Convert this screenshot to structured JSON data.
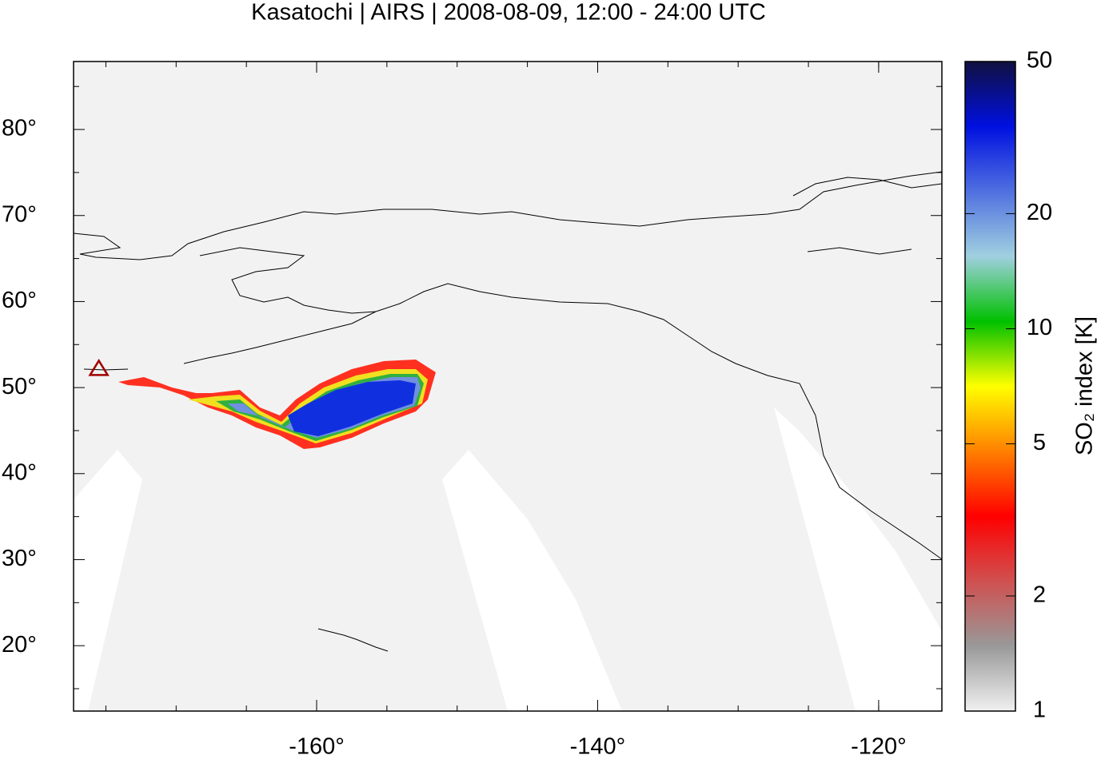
{
  "chart_data": {
    "type": "map",
    "title": "Kasatochi | AIRS | 2008-08-09, 12:00 - 24:00 UTC",
    "xlim": [
      -177.3,
      -115.5
    ],
    "ylim": [
      12.4,
      87.9
    ],
    "xticks": [
      {
        "value": -160,
        "label": "-160°"
      },
      {
        "value": -140,
        "label": "-140°"
      },
      {
        "value": -120,
        "label": "-120°"
      }
    ],
    "yticks": [
      {
        "value": 20,
        "label": "20°"
      },
      {
        "value": 30,
        "label": "30°"
      },
      {
        "value": 40,
        "label": "40°"
      },
      {
        "value": 50,
        "label": "50°"
      },
      {
        "value": 60,
        "label": "60°"
      },
      {
        "value": 70,
        "label": "70°"
      },
      {
        "value": 80,
        "label": "80°"
      }
    ],
    "xminorticks": [
      -175,
      -170,
      -165,
      -155,
      -150,
      -145,
      -135,
      -130,
      -125,
      -120
    ],
    "yminorticks": [
      15,
      25,
      35,
      45,
      55,
      65,
      75,
      85
    ],
    "volcano": {
      "lon": -175.5,
      "lat": 52.2,
      "color": "#a00000"
    },
    "colorbar": {
      "label": "SO₂ index [K]",
      "lim": [
        1,
        50
      ],
      "log": true,
      "ticks": [
        1,
        2,
        5,
        10,
        20,
        50
      ],
      "colors": [
        "#f0f0f0",
        "#999999",
        "#d05050",
        "#ff0000",
        "#ff8000",
        "#ffff00",
        "#00c000",
        "#a0d0e0",
        "#5070e0",
        "#0010e0",
        "#101040"
      ]
    }
  }
}
